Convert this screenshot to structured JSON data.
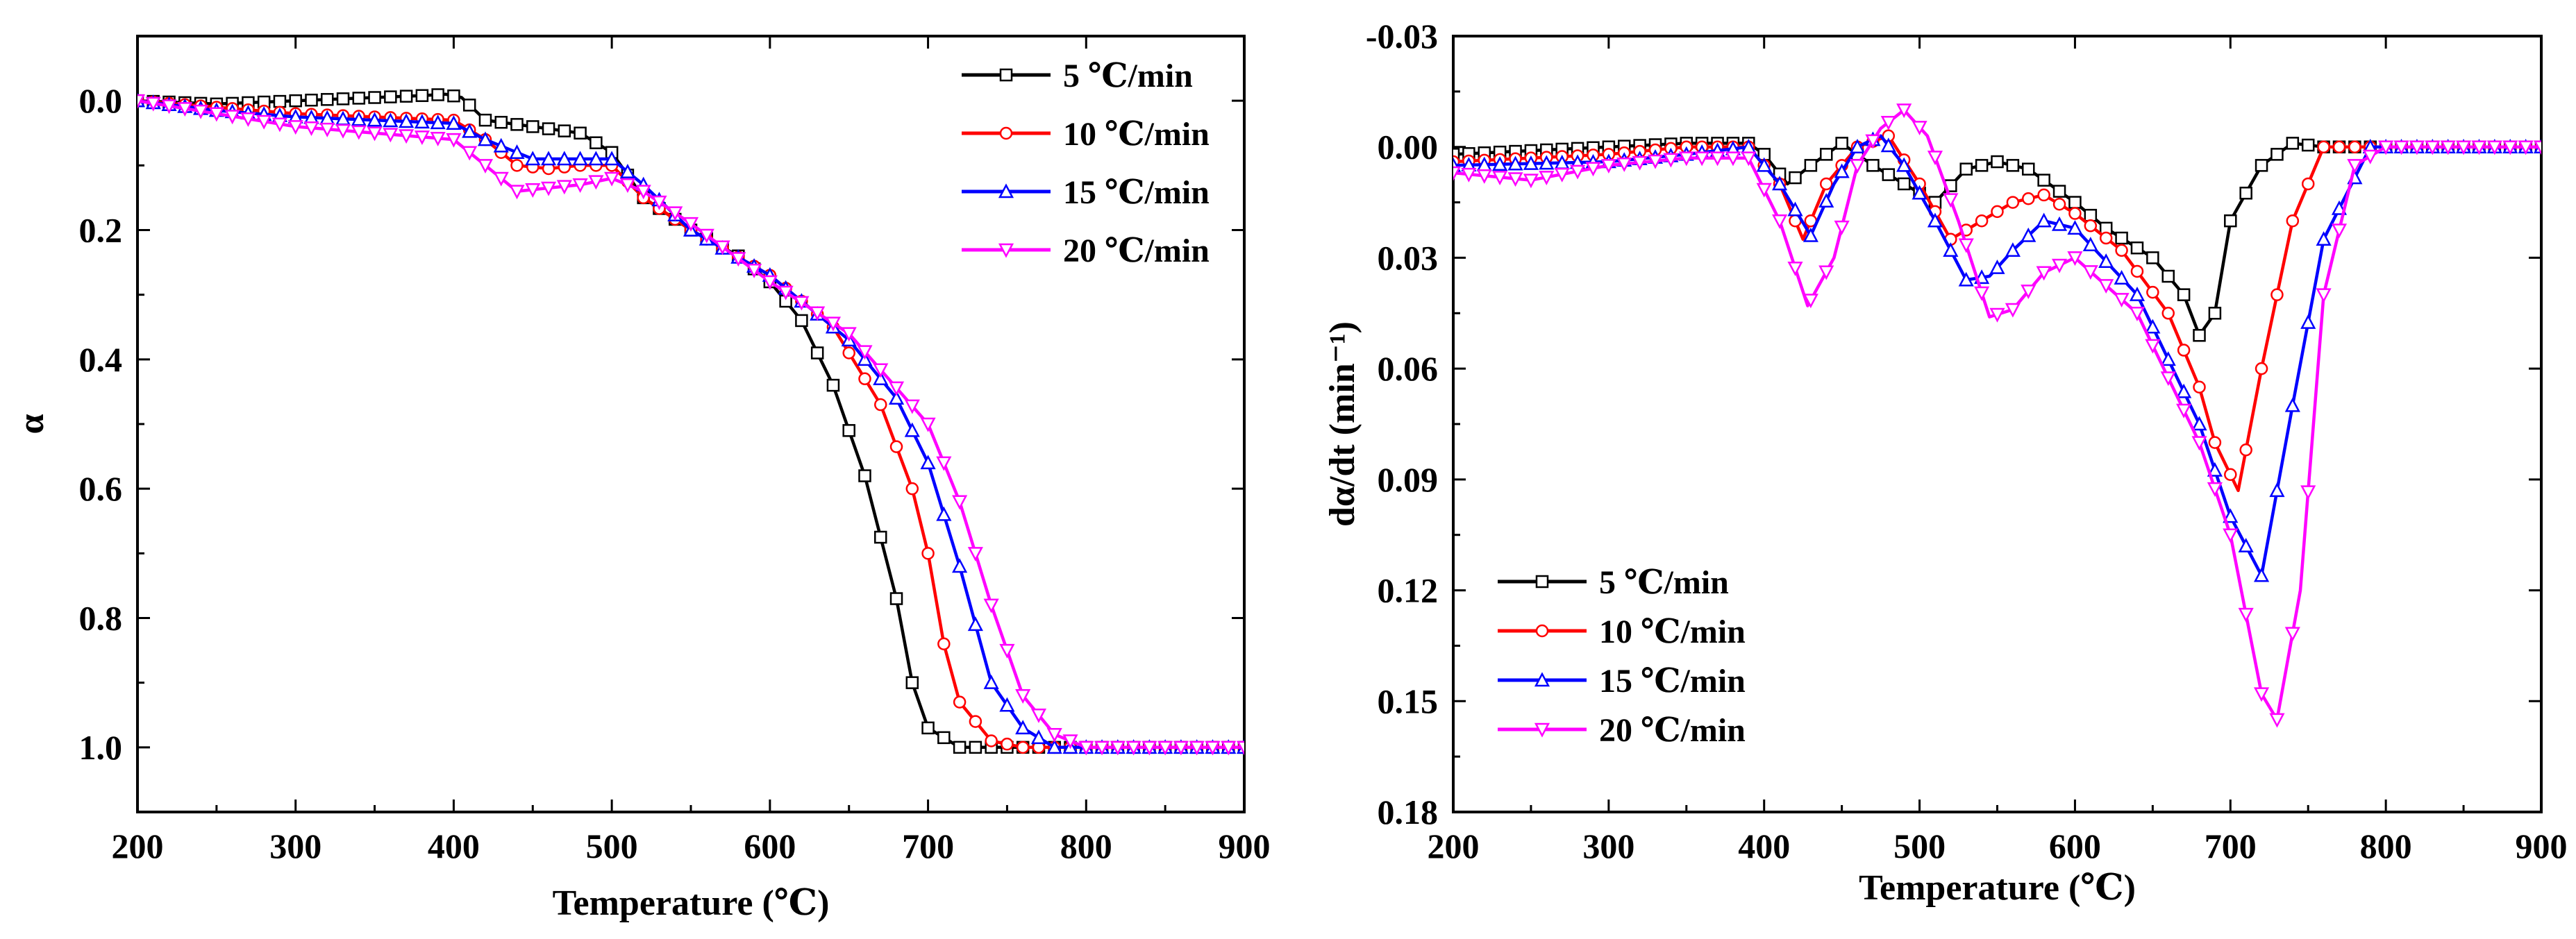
{
  "chart_data": [
    {
      "type": "line",
      "xlabel": "Temperature (℃)",
      "ylabel": "α",
      "xlim": [
        200,
        900
      ],
      "ylim": [
        -0.1,
        1.1
      ],
      "y_inverted": true,
      "x_ticks": [
        200,
        300,
        400,
        500,
        600,
        700,
        800,
        900
      ],
      "x_tick_labels": [
        "200",
        "300",
        "400",
        "500",
        "600",
        "700",
        "800",
        "900"
      ],
      "y_ticks": [
        0.0,
        0.2,
        0.4,
        0.6,
        0.8,
        1.0
      ],
      "y_tick_labels": [
        "0.0",
        "0.2",
        "0.4",
        "0.6",
        "0.8",
        "1.0"
      ],
      "legend_position": "top-right",
      "series": [
        {
          "name": "5 ℃/min",
          "color": "#000000",
          "marker": "square",
          "x": [
            200,
            250,
            300,
            350,
            380,
            395,
            405,
            420,
            450,
            480,
            500,
            520,
            550,
            580,
            600,
            620,
            640,
            660,
            680,
            690,
            700,
            720,
            750,
            800,
            900
          ],
          "y": [
            0.0,
            0.005,
            0.0,
            -0.005,
            -0.008,
            -0.01,
            -0.005,
            0.03,
            0.04,
            0.05,
            0.08,
            0.15,
            0.2,
            0.24,
            0.28,
            0.34,
            0.44,
            0.58,
            0.77,
            0.9,
            0.97,
            1.0,
            1.0,
            1.0,
            1.0
          ]
        },
        {
          "name": "10 ℃/min",
          "color": "#ff0000",
          "marker": "circle",
          "x": [
            200,
            250,
            300,
            350,
            400,
            420,
            440,
            460,
            480,
            500,
            520,
            550,
            600,
            640,
            670,
            690,
            700,
            710,
            720,
            740,
            760,
            800,
            900
          ],
          "y": [
            0.0,
            0.01,
            0.02,
            0.025,
            0.03,
            0.06,
            0.1,
            0.105,
            0.1,
            0.1,
            0.15,
            0.2,
            0.27,
            0.35,
            0.47,
            0.6,
            0.7,
            0.84,
            0.93,
            0.99,
            1.0,
            1.0,
            1.0
          ]
        },
        {
          "name": "15 ℃/min",
          "color": "#0000ff",
          "marker": "triangle-up",
          "x": [
            200,
            250,
            300,
            350,
            400,
            420,
            450,
            480,
            500,
            520,
            550,
            600,
            650,
            680,
            700,
            720,
            740,
            760,
            780,
            800,
            900
          ],
          "y": [
            0.0,
            0.015,
            0.025,
            0.03,
            0.035,
            0.06,
            0.09,
            0.09,
            0.09,
            0.13,
            0.2,
            0.27,
            0.37,
            0.46,
            0.56,
            0.72,
            0.9,
            0.97,
            1.0,
            1.0,
            1.0
          ]
        },
        {
          "name": "20 ℃/min",
          "color": "#ff00ff",
          "marker": "triangle-down",
          "x": [
            200,
            250,
            300,
            350,
            400,
            420,
            440,
            460,
            480,
            500,
            520,
            550,
            600,
            650,
            700,
            720,
            740,
            760,
            780,
            800,
            900
          ],
          "y": [
            0.0,
            0.02,
            0.04,
            0.05,
            0.06,
            0.1,
            0.14,
            0.135,
            0.13,
            0.12,
            0.14,
            0.19,
            0.28,
            0.36,
            0.5,
            0.62,
            0.78,
            0.92,
            0.98,
            1.0,
            1.0
          ]
        }
      ]
    },
    {
      "type": "line",
      "xlabel": "Temperature (℃)",
      "ylabel": "dα/dt (min⁻¹)",
      "xlim": [
        200,
        900
      ],
      "ylim": [
        -0.03,
        0.18
      ],
      "y_inverted": true,
      "x_ticks": [
        200,
        300,
        400,
        500,
        600,
        700,
        800,
        900
      ],
      "x_tick_labels": [
        "200",
        "300",
        "400",
        "500",
        "600",
        "700",
        "800",
        "900"
      ],
      "y_ticks": [
        -0.03,
        0.0,
        0.03,
        0.06,
        0.09,
        0.12,
        0.15,
        0.18
      ],
      "y_tick_labels": [
        "-0.03",
        "0.00",
        "0.03",
        "0.06",
        "0.09",
        "0.12",
        "0.15",
        "0.18"
      ],
      "legend_position": "bottom-left",
      "series": [
        {
          "name": "5 ℃/min",
          "color": "#000000",
          "marker": "square",
          "x": [
            200,
            300,
            350,
            390,
            400,
            415,
            430,
            450,
            470,
            490,
            510,
            530,
            550,
            570,
            600,
            620,
            650,
            670,
            680,
            690,
            700,
            720,
            740,
            760,
            800,
            900
          ],
          "y": [
            0.002,
            0.0,
            -0.001,
            -0.001,
            0.002,
            0.01,
            0.005,
            -0.001,
            0.005,
            0.01,
            0.015,
            0.006,
            0.004,
            0.006,
            0.015,
            0.022,
            0.03,
            0.04,
            0.051,
            0.045,
            0.02,
            0.005,
            -0.001,
            0.0,
            0.0,
            0.0
          ]
        },
        {
          "name": "10 ℃/min",
          "color": "#ff0000",
          "marker": "circle",
          "x": [
            200,
            300,
            350,
            390,
            410,
            425,
            440,
            460,
            480,
            500,
            520,
            540,
            560,
            580,
            600,
            630,
            660,
            680,
            690,
            705,
            720,
            740,
            760,
            800,
            900
          ],
          "y": [
            0.004,
            0.002,
            0.0,
            0.0,
            0.01,
            0.025,
            0.01,
            0.0,
            -0.003,
            0.01,
            0.025,
            0.02,
            0.015,
            0.013,
            0.018,
            0.028,
            0.045,
            0.065,
            0.08,
            0.093,
            0.06,
            0.02,
            0.0,
            0.0,
            0.0
          ]
        },
        {
          "name": "15 ℃/min",
          "color": "#0000ff",
          "marker": "triangle-up",
          "x": [
            200,
            300,
            350,
            390,
            410,
            430,
            445,
            460,
            475,
            490,
            510,
            530,
            545,
            560,
            580,
            600,
            640,
            680,
            700,
            720,
            740,
            760,
            790,
            800,
            900
          ],
          "y": [
            0.005,
            0.004,
            0.002,
            0.0,
            0.01,
            0.024,
            0.01,
            0.0,
            -0.003,
            0.005,
            0.02,
            0.036,
            0.035,
            0.028,
            0.02,
            0.022,
            0.04,
            0.075,
            0.1,
            0.116,
            0.07,
            0.025,
            0.0,
            0.0,
            0.0
          ]
        },
        {
          "name": "20 ℃/min",
          "color": "#ff00ff",
          "marker": "triangle-down",
          "x": [
            200,
            250,
            300,
            350,
            390,
            410,
            428,
            445,
            460,
            475,
            490,
            505,
            525,
            545,
            560,
            580,
            600,
            640,
            680,
            700,
            720,
            730,
            745,
            760,
            780,
            800,
            900
          ],
          "y": [
            0.007,
            0.009,
            0.005,
            0.003,
            0.003,
            0.02,
            0.043,
            0.03,
            0.005,
            -0.005,
            -0.01,
            -0.003,
            0.02,
            0.046,
            0.044,
            0.034,
            0.03,
            0.045,
            0.08,
            0.105,
            0.148,
            0.155,
            0.12,
            0.04,
            0.005,
            0.0,
            0.0
          ]
        }
      ]
    }
  ]
}
